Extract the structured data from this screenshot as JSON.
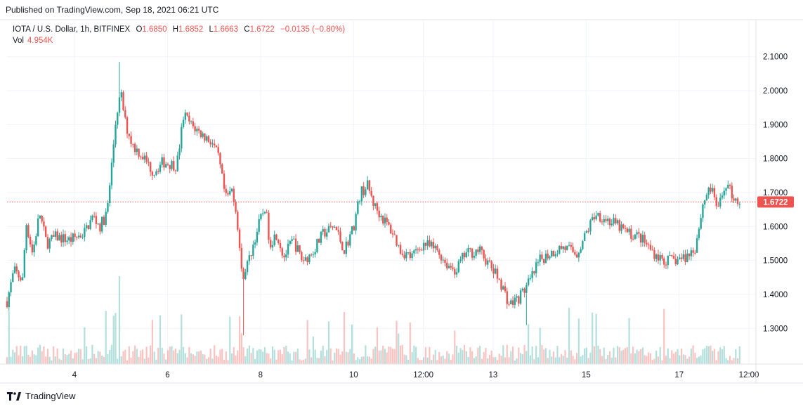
{
  "header": {
    "published": "Published on TradingView.com, Sep 18, 2021 06:21 UTC"
  },
  "legend": {
    "symbol": "IOTA / U.S. Dollar, 1h, BITFINEX",
    "open_key": "O",
    "open": "1.6850",
    "high_key": "H",
    "high": "1.6852",
    "low_key": "L",
    "low": "1.6663",
    "close_key": "C",
    "close": "1.6722",
    "change": "−0.0135 (−0.80%)",
    "vol_key": "Vol",
    "vol": "4.954K"
  },
  "footer": {
    "brand": "TradingView"
  },
  "colors": {
    "up": "#26a69a",
    "down": "#ef5350",
    "grid": "#f0f3fa",
    "price_line": "#ef5350"
  },
  "chart_data": {
    "type": "candlestick",
    "symbol": "IOTA / U.S. Dollar",
    "interval": "1h",
    "exchange": "BITFINEX",
    "last_price": 1.6722,
    "last_price_label": "1.6722",
    "y_ticks": [
      "2.1000",
      "2.0000",
      "1.9000",
      "1.8000",
      "1.7000",
      "1.6000",
      "1.5000",
      "1.4000",
      "1.3000"
    ],
    "y_tick_values": [
      2.1,
      2.0,
      1.9,
      1.8,
      1.7,
      1.6,
      1.5,
      1.4,
      1.3
    ],
    "ylim": [
      1.195,
      2.205
    ],
    "x_ticks": [
      "4",
      "6",
      "8",
      "10",
      "12:00",
      "13",
      "15",
      "17",
      "12:00"
    ],
    "x_tick_days": [
      4,
      6,
      8,
      10,
      11.5,
      13,
      15,
      17,
      18.5
    ],
    "xlim": [
      2.55,
      18.65
    ],
    "grid": true,
    "price_path": [
      [
        2.55,
        1.38
      ],
      [
        2.7,
        1.47
      ],
      [
        2.9,
        1.44
      ],
      [
        2.95,
        1.62
      ],
      [
        3.1,
        1.52
      ],
      [
        3.25,
        1.64
      ],
      [
        3.4,
        1.55
      ],
      [
        3.6,
        1.57
      ],
      [
        3.9,
        1.56
      ],
      [
        4.2,
        1.58
      ],
      [
        4.4,
        1.63
      ],
      [
        4.55,
        1.6
      ],
      [
        4.7,
        1.64
      ],
      [
        4.8,
        1.78
      ],
      [
        4.9,
        1.93
      ],
      [
        5.0,
        1.99
      ],
      [
        5.1,
        1.9
      ],
      [
        5.25,
        1.84
      ],
      [
        5.45,
        1.81
      ],
      [
        5.7,
        1.76
      ],
      [
        5.9,
        1.79
      ],
      [
        6.2,
        1.78
      ],
      [
        6.35,
        1.93
      ],
      [
        6.5,
        1.9
      ],
      [
        6.75,
        1.87
      ],
      [
        6.95,
        1.85
      ],
      [
        7.1,
        1.8
      ],
      [
        7.25,
        1.68
      ],
      [
        7.4,
        1.71
      ],
      [
        7.5,
        1.62
      ],
      [
        7.6,
        1.45
      ],
      [
        7.75,
        1.5
      ],
      [
        7.95,
        1.6
      ],
      [
        8.1,
        1.66
      ],
      [
        8.2,
        1.55
      ],
      [
        8.35,
        1.58
      ],
      [
        8.5,
        1.51
      ],
      [
        8.7,
        1.56
      ],
      [
        8.9,
        1.5
      ],
      [
        9.1,
        1.52
      ],
      [
        9.35,
        1.58
      ],
      [
        9.6,
        1.6
      ],
      [
        9.8,
        1.53
      ],
      [
        10.0,
        1.6
      ],
      [
        10.15,
        1.7
      ],
      [
        10.3,
        1.72
      ],
      [
        10.45,
        1.66
      ],
      [
        10.65,
        1.62
      ],
      [
        10.85,
        1.58
      ],
      [
        11.0,
        1.53
      ],
      [
        11.25,
        1.51
      ],
      [
        11.5,
        1.55
      ],
      [
        11.8,
        1.53
      ],
      [
        12.0,
        1.49
      ],
      [
        12.2,
        1.47
      ],
      [
        12.4,
        1.52
      ],
      [
        12.7,
        1.53
      ],
      [
        12.95,
        1.48
      ],
      [
        13.15,
        1.44
      ],
      [
        13.35,
        1.37
      ],
      [
        13.55,
        1.39
      ],
      [
        13.8,
        1.44
      ],
      [
        14.0,
        1.5
      ],
      [
        14.2,
        1.52
      ],
      [
        14.5,
        1.54
      ],
      [
        14.8,
        1.52
      ],
      [
        15.0,
        1.58
      ],
      [
        15.2,
        1.64
      ],
      [
        15.45,
        1.62
      ],
      [
        15.7,
        1.6
      ],
      [
        15.9,
        1.58
      ],
      [
        16.15,
        1.57
      ],
      [
        16.4,
        1.53
      ],
      [
        16.65,
        1.5
      ],
      [
        16.9,
        1.5
      ],
      [
        17.15,
        1.51
      ],
      [
        17.35,
        1.54
      ],
      [
        17.5,
        1.66
      ],
      [
        17.65,
        1.72
      ],
      [
        17.85,
        1.65
      ],
      [
        18.0,
        1.73
      ],
      [
        18.15,
        1.69
      ],
      [
        18.3,
        1.6722
      ]
    ],
    "extremes": [
      {
        "x": 4.98,
        "high": 2.085
      },
      {
        "x": 7.62,
        "low": 1.28
      },
      {
        "x": 13.72,
        "low": 1.31
      }
    ],
    "volume_spikes": [
      {
        "x": 4.85,
        "scale": 0.55
      },
      {
        "x": 4.95,
        "scale": 1.0
      },
      {
        "x": 7.6,
        "scale": 0.35
      },
      {
        "x": 2.6,
        "scale": 0.6
      }
    ]
  }
}
